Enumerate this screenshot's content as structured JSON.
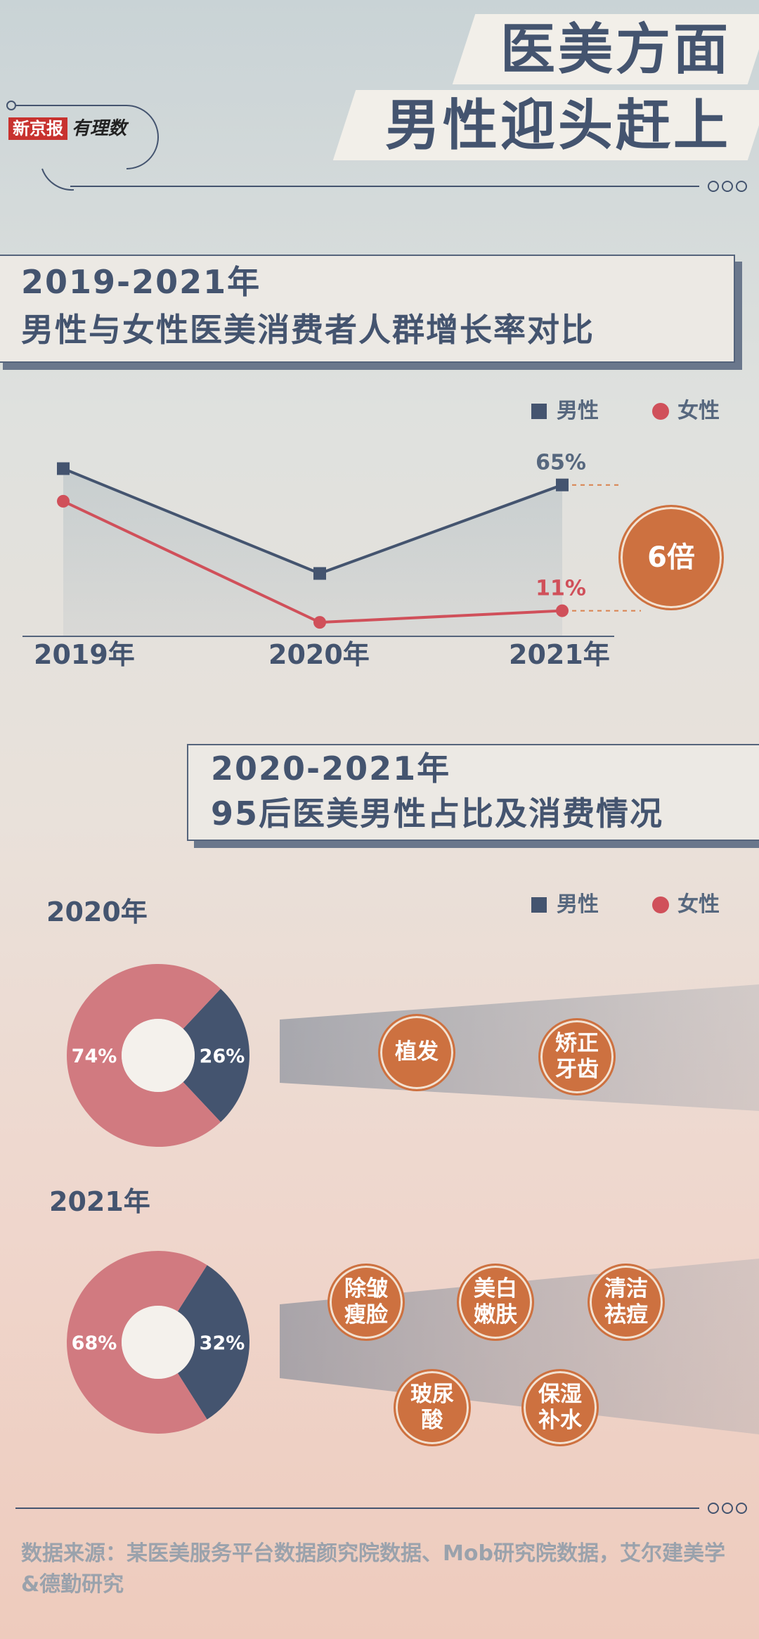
{
  "header": {
    "logo_brand": "新京报",
    "logo_sub": "有理数",
    "title_line1": "医美方面",
    "title_line2": "男性迎头赶上"
  },
  "section1": {
    "title_line1": "2019-2021年",
    "title_line2": "男性与女性医美消费者人群增长率对比",
    "legend": [
      {
        "label": "男性",
        "color": "#44546f"
      },
      {
        "label": "女性",
        "color": "#d0505a"
      }
    ],
    "labels": {
      "male_2021": "65%",
      "female_2021": "11%"
    },
    "ratio_badge": "6倍"
  },
  "chart_data": [
    {
      "type": "line",
      "categories": [
        "2019年",
        "2020年",
        "2021年"
      ],
      "series": [
        {
          "name": "男性",
          "values": [
            72,
            27,
            65
          ],
          "color": "#44546f"
        },
        {
          "name": "女性",
          "values": [
            58,
            6,
            11
          ],
          "color": "#d0505a"
        }
      ],
      "value_labels": {
        "男性_2021年": "65%",
        "女性_2021年": "11%"
      },
      "annotation": "6倍",
      "ylim": [
        0,
        80
      ]
    },
    {
      "type": "pie",
      "title": "2020年",
      "slices": [
        {
          "label": "男性",
          "value": 26,
          "color": "#44546f"
        },
        {
          "label": "女性",
          "value": 74,
          "color": "#d17a80"
        }
      ]
    },
    {
      "type": "pie",
      "title": "2021年",
      "slices": [
        {
          "label": "男性",
          "value": 32,
          "color": "#44546f"
        },
        {
          "label": "女性",
          "value": 68,
          "color": "#d17a80"
        }
      ]
    }
  ],
  "section2": {
    "title_line1": "2020-2021年",
    "title_line2": "95后医美男性占比及消费情况",
    "legend": [
      {
        "label": "男性"
      },
      {
        "label": "女性"
      }
    ],
    "year_2020": {
      "label": "2020年",
      "male_pct": "26%",
      "female_pct": "74%",
      "items": [
        {
          "line1": "植发",
          "line2": ""
        },
        {
          "line1": "矫正",
          "line2": "牙齿"
        }
      ]
    },
    "year_2021": {
      "label": "2021年",
      "male_pct": "32%",
      "female_pct": "68%",
      "items": [
        {
          "line1": "除皱",
          "line2": "瘦脸"
        },
        {
          "line1": "美白",
          "line2": "嫩肤"
        },
        {
          "line1": "清洁",
          "line2": "祛痘"
        },
        {
          "line1": "玻尿",
          "line2": "酸"
        },
        {
          "line1": "保湿",
          "line2": "补水"
        }
      ]
    }
  },
  "footer": {
    "source": "数据来源：某医美服务平台数据颜究院数据、Mob研究院数据，艾尔建美学&德勤研究"
  }
}
